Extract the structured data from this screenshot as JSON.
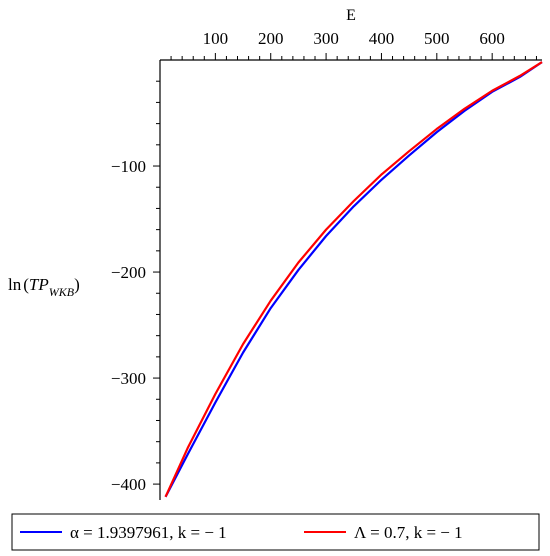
{
  "chart_data": {
    "type": "line",
    "xlabel": "E",
    "ylabel": {
      "prefix": "ln",
      "main": "TP",
      "subscript": "WKB"
    },
    "xlim": [
      0,
      690
    ],
    "ylim": [
      -415,
      0
    ],
    "xticks": [
      100,
      200,
      300,
      400,
      500,
      600
    ],
    "yticks": [
      -100,
      -200,
      -300,
      -400
    ],
    "xtick_labels": [
      "100",
      "200",
      "300",
      "400",
      "500",
      "600"
    ],
    "ytick_labels": [
      "−100",
      "−200",
      "−300",
      "−400"
    ],
    "x_axis_position": "top",
    "grid": false,
    "legend_placement": "bottom",
    "series": [
      {
        "name": "α = 1.9397961, k = − 1",
        "color": "#0000ff",
        "x": [
          10,
          50,
          100,
          150,
          200,
          250,
          300,
          350,
          400,
          450,
          500,
          550,
          600,
          650,
          690
        ],
        "y": [
          -412,
          -372,
          -323,
          -276,
          -234,
          -198,
          -166,
          -138,
          -113,
          -90,
          -68,
          -48,
          -30,
          -16,
          -2
        ]
      },
      {
        "name": "Λ = 0.7, k = − 1",
        "color": "#ff0000",
        "x": [
          10,
          50,
          100,
          150,
          200,
          250,
          300,
          350,
          400,
          450,
          500,
          550,
          600,
          650,
          690
        ],
        "y": [
          -412,
          -366,
          -315,
          -268,
          -227,
          -191,
          -160,
          -133,
          -108,
          -86,
          -65,
          -46,
          -29,
          -15,
          -2
        ]
      }
    ]
  }
}
